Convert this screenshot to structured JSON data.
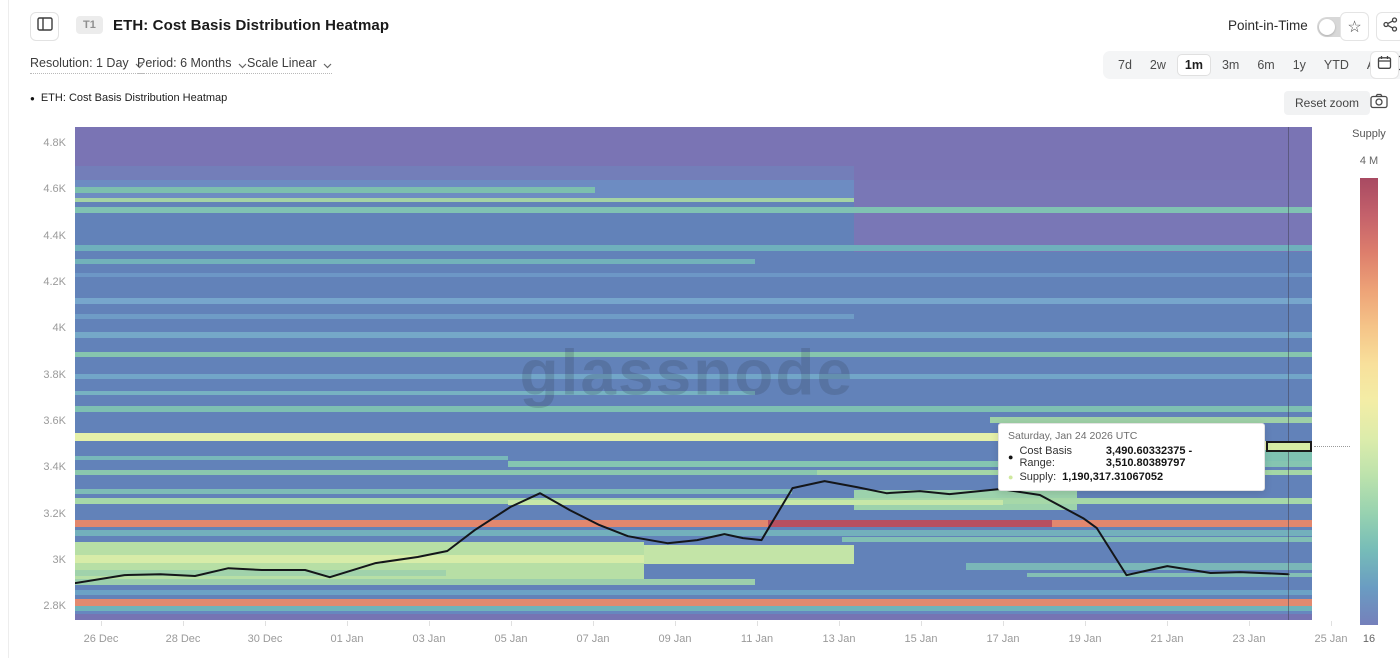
{
  "header": {
    "t1_badge": "T1",
    "title": "ETH: Cost Basis Distribution Heatmap",
    "point_in_time_label": "Point-in-Time",
    "point_in_time_on": false
  },
  "controls": {
    "resolution_label": "Resolution: 1 Day",
    "period_label": "Period: 6 Months",
    "scale_label": "Scale Linear",
    "range_buttons": [
      "7d",
      "2w",
      "1m",
      "3m",
      "6m",
      "1y",
      "YTD",
      "All"
    ],
    "selected_range": "1m"
  },
  "legend": {
    "series_label": "ETH: Cost Basis Distribution Heatmap",
    "reset_zoom_label": "Reset zoom"
  },
  "watermark": "glassnode",
  "tooltip": {
    "title": "Saturday, Jan 24 2026 UTC",
    "rows": [
      {
        "dot_color": "#111111",
        "label": "Cost Basis Range:",
        "value": "3,490.60332375 - 3,510.80389797"
      },
      {
        "dot_color": "#cfe89e",
        "label": "Supply:",
        "value": "1,190,317.31067052"
      }
    ]
  },
  "chart_data": {
    "type": "heatmap",
    "title": "ETH: Cost Basis Distribution Heatmap",
    "x_ticks": [
      "26 Dec",
      "28 Dec",
      "30 Dec",
      "01 Jan",
      "03 Jan",
      "05 Jan",
      "07 Jan",
      "09 Jan",
      "11 Jan",
      "13 Jan",
      "15 Jan",
      "17 Jan",
      "19 Jan",
      "21 Jan",
      "23 Jan",
      "25 Jan"
    ],
    "y_ticks": [
      {
        "v": 4.8,
        "label": "4.8K"
      },
      {
        "v": 4.6,
        "label": "4.6K"
      },
      {
        "v": 4.4,
        "label": "4.4K"
      },
      {
        "v": 4.2,
        "label": "4.2K"
      },
      {
        "v": 4.0,
        "label": "4K"
      },
      {
        "v": 3.8,
        "label": "3.8K"
      },
      {
        "v": 3.6,
        "label": "3.6K"
      },
      {
        "v": 3.4,
        "label": "3.4K"
      },
      {
        "v": 3.2,
        "label": "3.2K"
      },
      {
        "v": 3.0,
        "label": "3K"
      },
      {
        "v": 2.8,
        "label": "2.8K"
      }
    ],
    "value_axis_range_k": [
      2.74,
      4.87
    ],
    "colorbar": {
      "title": "Supply",
      "top_label": "4 M",
      "bottom_label": "16",
      "stops": [
        "#a84a62",
        "#c4616b",
        "#dd7e6c",
        "#eda277",
        "#f5c488",
        "#f8e09b",
        "#f3eda6",
        "#dcecab",
        "#bce2ac",
        "#97d2b0",
        "#76bcb8",
        "#6a9cc2",
        "#7580bb"
      ]
    },
    "base_color": "#6282b9",
    "heatmap_bands": [
      {
        "v0": 4.87,
        "v1": 4.64,
        "x0": 0,
        "x1": 1,
        "c": "#7a74b4"
      },
      {
        "v0": 4.64,
        "v1": 4.33,
        "x0": 0.63,
        "x1": 1,
        "c": "#7977b6"
      },
      {
        "v0": 4.7,
        "v1": 4.64,
        "x0": 0,
        "x1": 0.63,
        "c": "#737eb9"
      },
      {
        "v0": 4.64,
        "v1": 4.56,
        "x0": 0,
        "x1": 0.63,
        "c": "#6d8cc2"
      },
      {
        "v0": 4.61,
        "v1": 4.585,
        "x0": 0,
        "x1": 0.42,
        "c": "#7cbfae"
      },
      {
        "v0": 4.565,
        "v1": 4.545,
        "x0": 0,
        "x1": 0.63,
        "c": "#a4d3a4"
      },
      {
        "v0": 4.525,
        "v1": 4.5,
        "x0": 0,
        "x1": 1,
        "c": "#80c2b2"
      },
      {
        "v0": 4.36,
        "v1": 4.335,
        "x0": 0,
        "x1": 1,
        "c": "#6fb0bc"
      },
      {
        "v0": 4.3,
        "v1": 4.28,
        "x0": 0,
        "x1": 0.55,
        "c": "#72b2ba"
      },
      {
        "v0": 4.24,
        "v1": 4.22,
        "x0": 0,
        "x1": 1,
        "c": "#6d97c6"
      },
      {
        "v0": 4.13,
        "v1": 4.105,
        "x0": 0,
        "x1": 1,
        "c": "#77a6cc"
      },
      {
        "v0": 4.06,
        "v1": 4.04,
        "x0": 0,
        "x1": 0.63,
        "c": "#6f9cc6"
      },
      {
        "v0": 3.985,
        "v1": 3.96,
        "x0": 0,
        "x1": 1,
        "c": "#75a8c8"
      },
      {
        "v0": 3.9,
        "v1": 3.875,
        "x0": 0,
        "x1": 1,
        "c": "#86c5ae"
      },
      {
        "v0": 3.805,
        "v1": 3.78,
        "x0": 0,
        "x1": 1,
        "c": "#72a6c8"
      },
      {
        "v0": 3.73,
        "v1": 3.71,
        "x0": 0,
        "x1": 0.55,
        "c": "#77b2c2"
      },
      {
        "v0": 3.665,
        "v1": 3.64,
        "x0": 0,
        "x1": 1,
        "c": "#7ec0b2"
      },
      {
        "v0": 3.615,
        "v1": 3.59,
        "x0": 0.74,
        "x1": 1,
        "c": "#9ed0a6"
      },
      {
        "v0": 3.548,
        "v1": 3.513,
        "x0": 0,
        "x1": 0.76,
        "c": "#e5f0a9"
      },
      {
        "v0": 3.515,
        "v1": 3.47,
        "x0": 0.76,
        "x1": 1,
        "c": "#e2efaa"
      },
      {
        "v0": 3.475,
        "v1": 3.41,
        "x0": 0.85,
        "x1": 1,
        "c": "#7fc2b2"
      },
      {
        "v0": 3.45,
        "v1": 3.43,
        "x0": 0,
        "x1": 0.35,
        "c": "#78b8ba"
      },
      {
        "v0": 3.425,
        "v1": 3.4,
        "x0": 0.35,
        "x1": 1,
        "c": "#85c5b1"
      },
      {
        "v0": 3.39,
        "v1": 3.365,
        "x0": 0,
        "x1": 1,
        "c": "#8ac7ae"
      },
      {
        "v0": 3.39,
        "v1": 3.365,
        "x0": 0.6,
        "x1": 1,
        "c": "#a4d6a6"
      },
      {
        "v0": 3.3,
        "v1": 3.215,
        "x0": 0.63,
        "x1": 0.81,
        "c": "#9cd2ac"
      },
      {
        "v0": 3.305,
        "v1": 3.285,
        "x0": 0,
        "x1": 0.58,
        "c": "#7ebcb6"
      },
      {
        "v0": 3.265,
        "v1": 3.24,
        "x0": 0,
        "x1": 1,
        "c": "#a6d8a8"
      },
      {
        "v0": 3.26,
        "v1": 3.235,
        "x0": 0.35,
        "x1": 0.75,
        "c": "#c6e7a8"
      },
      {
        "v0": 3.172,
        "v1": 3.142,
        "x0": 0,
        "x1": 1,
        "c": "#e2876e"
      },
      {
        "v0": 3.172,
        "v1": 3.142,
        "x0": 0.56,
        "x1": 0.79,
        "c": "#b74f60"
      },
      {
        "v0": 3.13,
        "v1": 3.105,
        "x0": 0,
        "x1": 1,
        "c": "#73b0bc"
      },
      {
        "v0": 3.1,
        "v1": 3.075,
        "x0": 0.62,
        "x1": 1,
        "c": "#82c0b4"
      },
      {
        "v0": 3.075,
        "v1": 2.9,
        "x0": 0,
        "x1": 0.46,
        "c": "#b7dfa5"
      },
      {
        "v0": 3.02,
        "v1": 2.985,
        "x0": 0,
        "x1": 0.46,
        "c": "#d7eca8"
      },
      {
        "v0": 3.065,
        "v1": 2.98,
        "x0": 0.46,
        "x1": 0.63,
        "c": "#c3e4a7"
      },
      {
        "v0": 2.985,
        "v1": 2.955,
        "x0": 0.72,
        "x1": 1,
        "c": "#7ab7b8"
      },
      {
        "v0": 2.945,
        "v1": 2.925,
        "x0": 0.77,
        "x1": 1,
        "c": "#84bfb4"
      },
      {
        "v0": 2.955,
        "v1": 2.93,
        "x0": 0,
        "x1": 0.3,
        "c": "#a0d2ab"
      },
      {
        "v0": 2.915,
        "v1": 2.89,
        "x0": 0,
        "x1": 0.55,
        "c": "#9ccfac"
      },
      {
        "v0": 2.87,
        "v1": 2.85,
        "x0": 0,
        "x1": 1,
        "c": "#6ba2c6"
      },
      {
        "v0": 2.83,
        "v1": 2.8,
        "x0": 0,
        "x1": 1,
        "c": "#e28a70"
      },
      {
        "v0": 2.8,
        "v1": 2.78,
        "x0": 0,
        "x1": 1,
        "c": "#70b4bc"
      },
      {
        "v0": 2.78,
        "v1": 2.765,
        "x0": 0,
        "x1": 1,
        "c": "#6787bf"
      },
      {
        "v0": 2.765,
        "v1": 2.74,
        "x0": 0,
        "x1": 1,
        "c": "#7674b3"
      }
    ],
    "price_line": {
      "color": "#14161a",
      "points": [
        [
          0.0,
          2.899
        ],
        [
          0.04,
          2.934
        ],
        [
          0.069,
          2.938
        ],
        [
          0.097,
          2.93
        ],
        [
          0.124,
          2.964
        ],
        [
          0.151,
          2.956
        ],
        [
          0.186,
          2.956
        ],
        [
          0.206,
          2.925
        ],
        [
          0.243,
          2.986
        ],
        [
          0.277,
          3.012
        ],
        [
          0.301,
          3.038
        ],
        [
          0.323,
          3.128
        ],
        [
          0.352,
          3.228
        ],
        [
          0.376,
          3.288
        ],
        [
          0.4,
          3.215
        ],
        [
          0.424,
          3.15
        ],
        [
          0.447,
          3.102
        ],
        [
          0.479,
          3.072
        ],
        [
          0.503,
          3.085
        ],
        [
          0.525,
          3.111
        ],
        [
          0.54,
          3.094
        ],
        [
          0.555,
          3.085
        ],
        [
          0.58,
          3.31
        ],
        [
          0.606,
          3.34
        ],
        [
          0.632,
          3.314
        ],
        [
          0.656,
          3.288
        ],
        [
          0.683,
          3.297
        ],
        [
          0.707,
          3.284
        ],
        [
          0.748,
          3.306
        ],
        [
          0.78,
          3.28
        ],
        [
          0.815,
          3.18
        ],
        [
          0.826,
          3.137
        ],
        [
          0.85,
          2.934
        ],
        [
          0.883,
          2.973
        ],
        [
          0.918,
          2.943
        ],
        [
          0.942,
          2.947
        ],
        [
          0.981,
          2.938
        ]
      ]
    },
    "highlight_cell": {
      "cost_basis_range": "3,490.60332375 - 3,510.80389797",
      "supply": "1,190,317.31067052",
      "date": "Saturday, Jan 24 2026 UTC",
      "color": "#d6eda4"
    },
    "crosshair_x_frac": 0.9806
  }
}
